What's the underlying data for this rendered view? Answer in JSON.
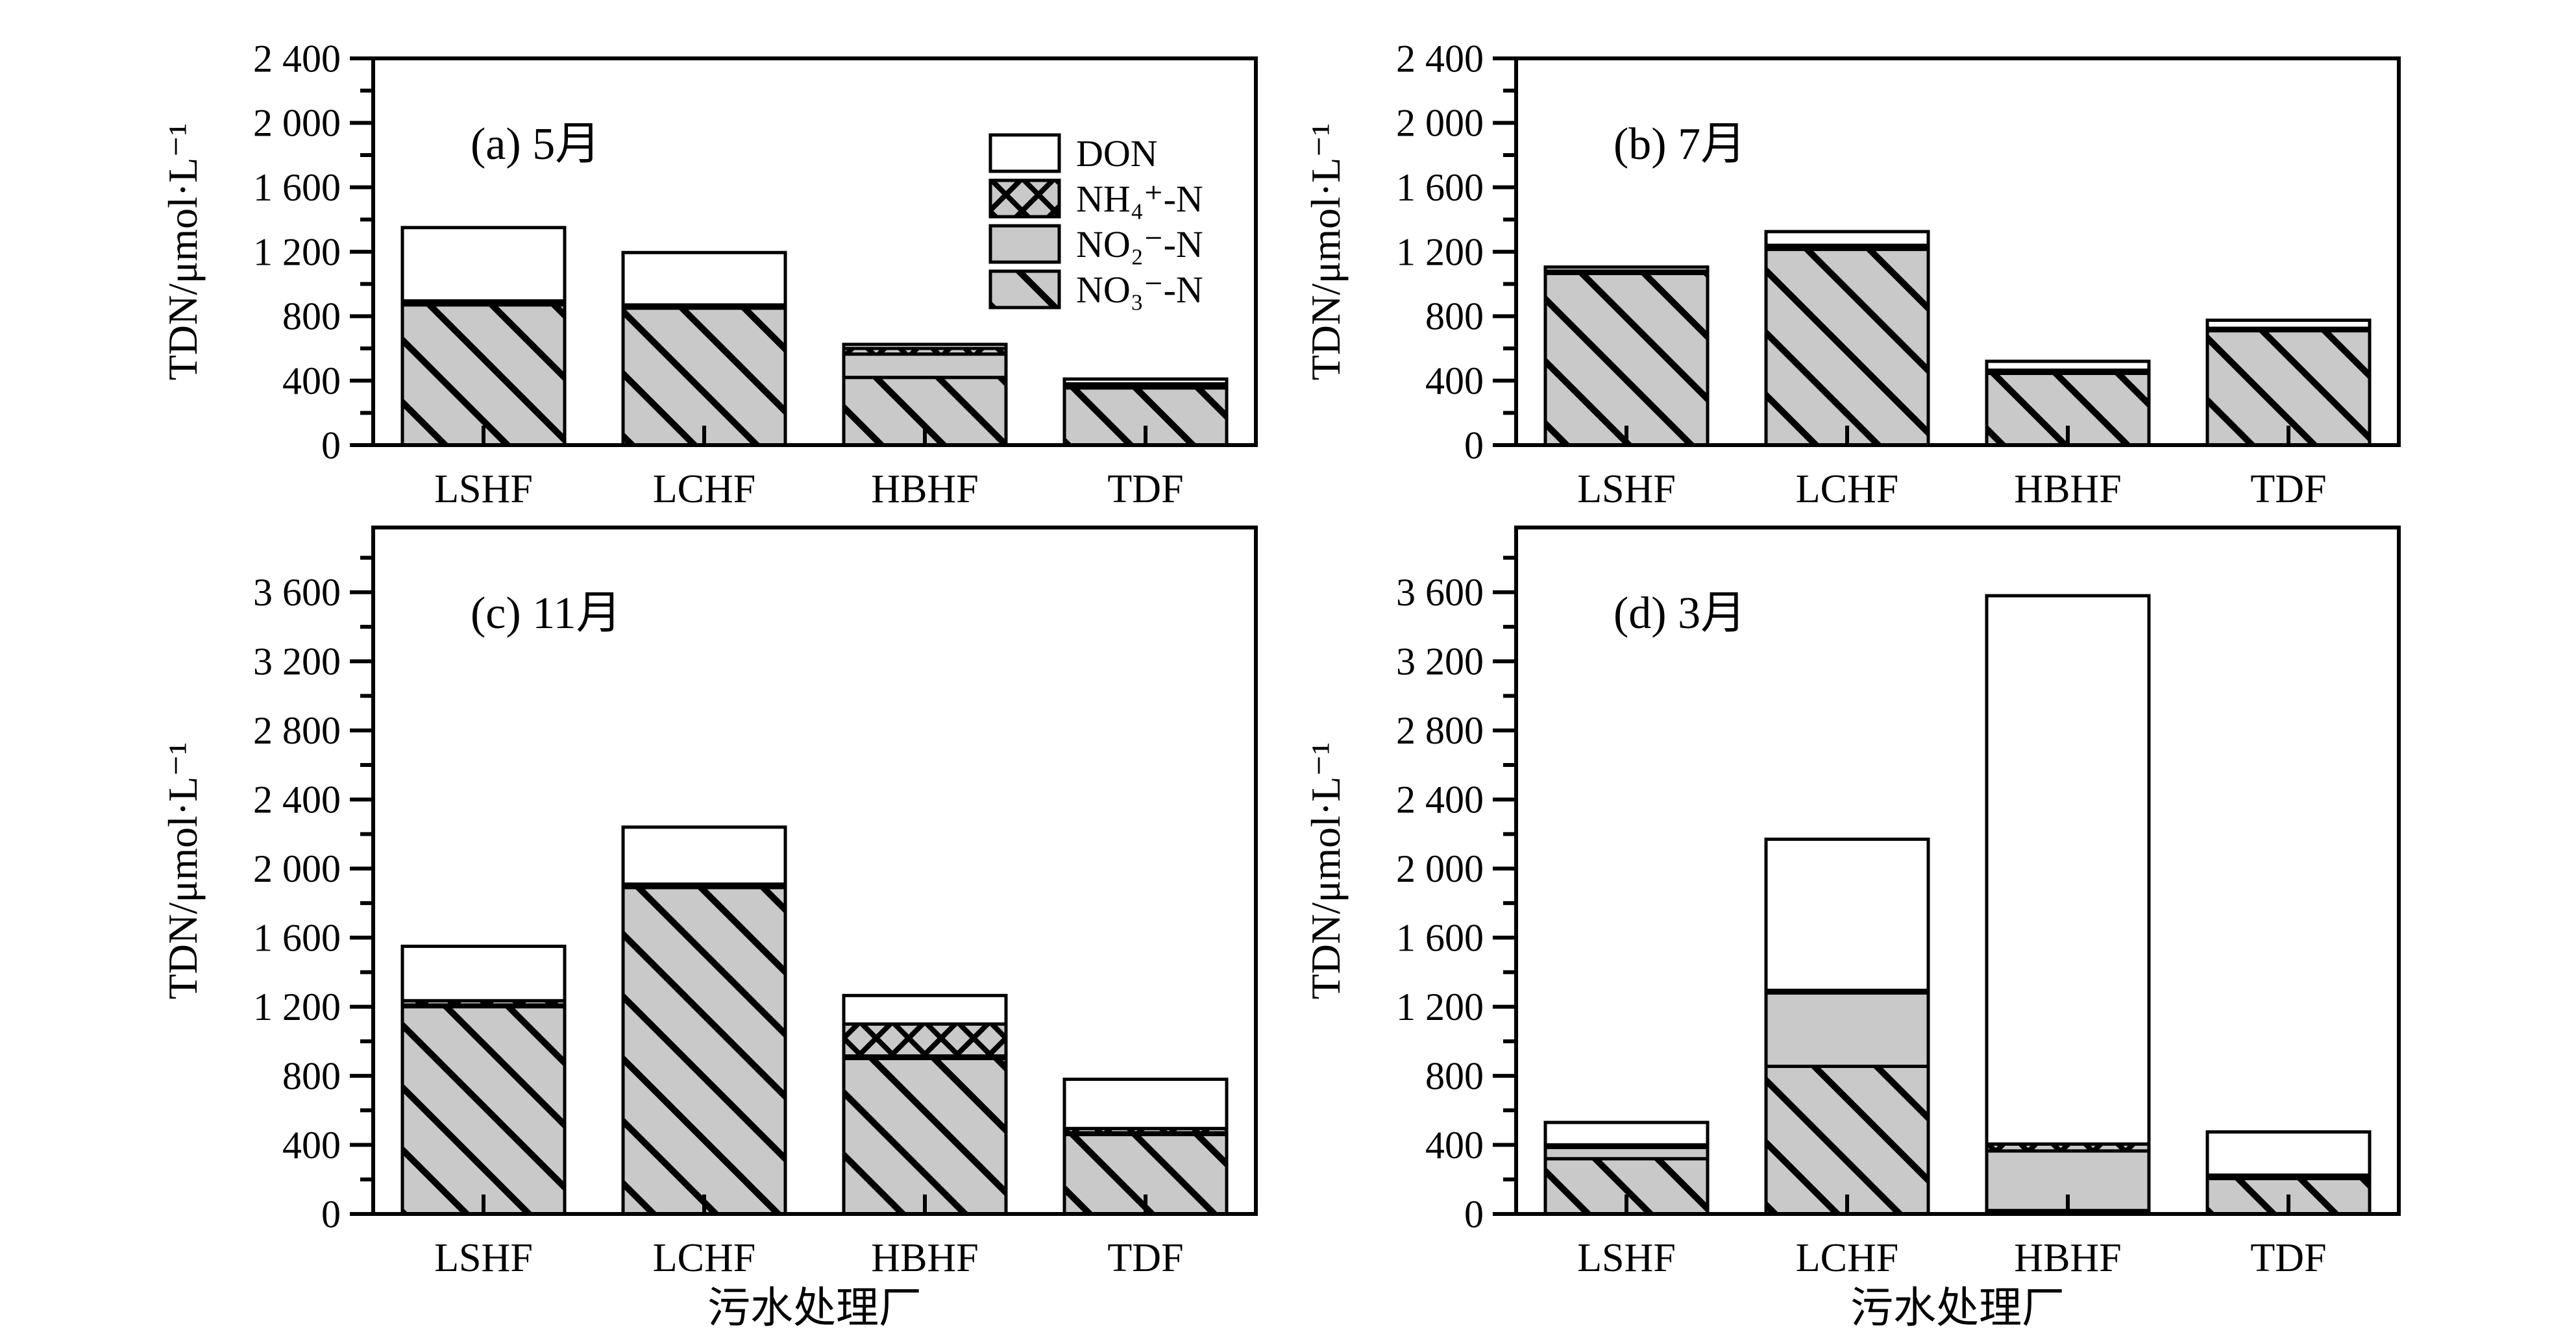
{
  "figure": {
    "y_axis_title": "TDN/μmol·L⁻¹",
    "x_axis_title": "污水处理厂",
    "categories": [
      "LSHF",
      "LCHF",
      "HBHF",
      "TDF"
    ],
    "colors": {
      "bar_gray": "#c9c9c9",
      "line": "#000000",
      "background": "#ffffff"
    },
    "legend": {
      "location": "upper-right-inside-panel-a",
      "items": [
        {
          "label": "DON",
          "pattern": "blank"
        },
        {
          "label": "NH₄⁺-N",
          "pattern": "crosshatch"
        },
        {
          "label": "NO₂⁻-N",
          "pattern": "solid"
        },
        {
          "label": "NO₃⁻-N",
          "pattern": "diagonal"
        }
      ]
    }
  },
  "chart_data": [
    {
      "type": "bar",
      "stacked": true,
      "panel": "a",
      "title": "(a) 5月",
      "categories": [
        "LSHF",
        "LCHF",
        "HBHF",
        "TDF"
      ],
      "ylim": [
        0,
        2400
      ],
      "ytick_step": 400,
      "ytick_minor_step": 200,
      "ytick_labels": [
        "0",
        "400",
        "800",
        "1 200",
        "1 600",
        "2 000",
        "2 400"
      ],
      "grid": false,
      "show_legend": true,
      "series": [
        {
          "name": "NO₃⁻-N",
          "pattern": "diagonal",
          "values": [
            870,
            850,
            420,
            355
          ]
        },
        {
          "name": "NO₂⁻-N",
          "pattern": "solid",
          "values": [
            15,
            10,
            145,
            15
          ]
        },
        {
          "name": "NH₄⁺-N",
          "pattern": "crosshatch",
          "values": [
            10,
            10,
            35,
            10
          ]
        },
        {
          "name": "DON",
          "pattern": "blank",
          "values": [
            455,
            325,
            25,
            30
          ]
        }
      ],
      "totals": [
        1350,
        1195,
        625,
        410
      ]
    },
    {
      "type": "bar",
      "stacked": true,
      "panel": "b",
      "title": "(b) 7月",
      "categories": [
        "LSHF",
        "LCHF",
        "HBHF",
        "TDF"
      ],
      "ylim": [
        0,
        2400
      ],
      "ytick_step": 400,
      "ytick_minor_step": 200,
      "ytick_labels": [
        "0",
        "400",
        "800",
        "1 200",
        "1 600",
        "2 000",
        "2 400"
      ],
      "grid": false,
      "show_legend": false,
      "series": [
        {
          "name": "NO₃⁻-N",
          "pattern": "diagonal",
          "values": [
            1065,
            1215,
            445,
            710
          ]
        },
        {
          "name": "NO₂⁻-N",
          "pattern": "solid",
          "values": [
            10,
            15,
            10,
            10
          ]
        },
        {
          "name": "NH₄⁺-N",
          "pattern": "crosshatch",
          "values": [
            5,
            10,
            10,
            5
          ]
        },
        {
          "name": "DON",
          "pattern": "blank",
          "values": [
            25,
            85,
            55,
            50
          ]
        }
      ],
      "totals": [
        1105,
        1325,
        520,
        775
      ]
    },
    {
      "type": "bar",
      "stacked": true,
      "panel": "c",
      "title": "(c) 11月",
      "categories": [
        "LSHF",
        "LCHF",
        "HBHF",
        "TDF"
      ],
      "ylim": [
        0,
        3975
      ],
      "ytick_step": 400,
      "ytick_minor_step": 200,
      "ytick_labels": [
        "0",
        "400",
        "800",
        "1 200",
        "1 600",
        "2 000",
        "2 400",
        "2 800",
        "3 200",
        "3 600"
      ],
      "grid": false,
      "show_legend": false,
      "series": [
        {
          "name": "NO₃⁻-N",
          "pattern": "diagonal",
          "values": [
            1200,
            1890,
            900,
            460
          ]
        },
        {
          "name": "NO₂⁻-N",
          "pattern": "solid",
          "values": [
            10,
            10,
            15,
            10
          ]
        },
        {
          "name": "NH₄⁺-N",
          "pattern": "crosshatch",
          "values": [
            25,
            10,
            185,
            25
          ]
        },
        {
          "name": "DON",
          "pattern": "blank",
          "values": [
            315,
            330,
            165,
            285
          ]
        }
      ],
      "totals": [
        1550,
        2240,
        1265,
        780
      ]
    },
    {
      "type": "bar",
      "stacked": true,
      "panel": "d",
      "title": "(d) 3月",
      "categories": [
        "LSHF",
        "LCHF",
        "HBHF",
        "TDF"
      ],
      "ylim": [
        0,
        3975
      ],
      "ytick_step": 400,
      "ytick_minor_step": 200,
      "ytick_labels": [
        "0",
        "400",
        "800",
        "1 200",
        "1 600",
        "2 000",
        "2 400",
        "2 800",
        "3 200",
        "3 600"
      ],
      "grid": false,
      "show_legend": false,
      "series": [
        {
          "name": "NO₃⁻-N",
          "pattern": "diagonal",
          "values": [
            320,
            855,
            20,
            205
          ]
        },
        {
          "name": "NO₂⁻-N",
          "pattern": "solid",
          "values": [
            65,
            425,
            345,
            10
          ]
        },
        {
          "name": "NH₄⁺-N",
          "pattern": "crosshatch",
          "values": [
            15,
            15,
            40,
            10
          ]
        },
        {
          "name": "DON",
          "pattern": "blank",
          "values": [
            130,
            875,
            3175,
            250
          ]
        }
      ],
      "totals": [
        530,
        2170,
        3580,
        475
      ]
    }
  ]
}
